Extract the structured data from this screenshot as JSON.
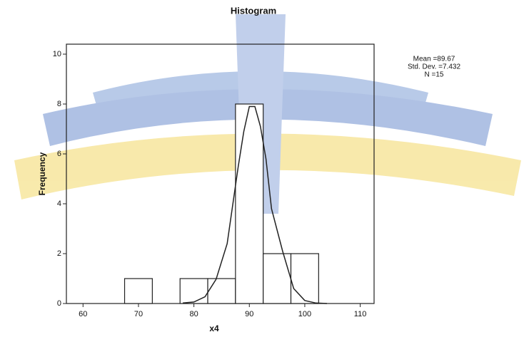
{
  "chart_data": {
    "type": "histogram",
    "title": "Histogram",
    "x_label": "x4",
    "y_label": "Frequency",
    "bins": [
      67.5,
      72.5,
      77.5,
      82.5,
      87.5,
      92.5,
      97.5,
      102.5
    ],
    "counts": [
      1,
      0,
      1,
      1,
      8,
      2,
      2
    ],
    "color": "#ffffff",
    "curve": {
      "x": [
        78,
        80,
        82,
        84,
        86,
        88,
        89,
        90,
        91,
        92,
        93,
        94,
        96,
        98,
        100,
        102,
        104
      ],
      "values": [
        0.02,
        0.06,
        0.27,
        0.97,
        2.4,
        5.5,
        6.9,
        7.9,
        7.9,
        7.1,
        5.8,
        3.8,
        2.1,
        0.6,
        0.12,
        0.02,
        0
      ]
    },
    "stats": [
      "Mean =89.67",
      "Std. Dev. =7.432",
      "N =15"
    ],
    "xlim": [
      57,
      112.5
    ],
    "ylim": [
      0,
      10.4
    ],
    "xticks": [
      60,
      70,
      80,
      90,
      100,
      110
    ],
    "yticks": [
      0,
      2,
      4,
      6,
      8,
      10
    ]
  }
}
